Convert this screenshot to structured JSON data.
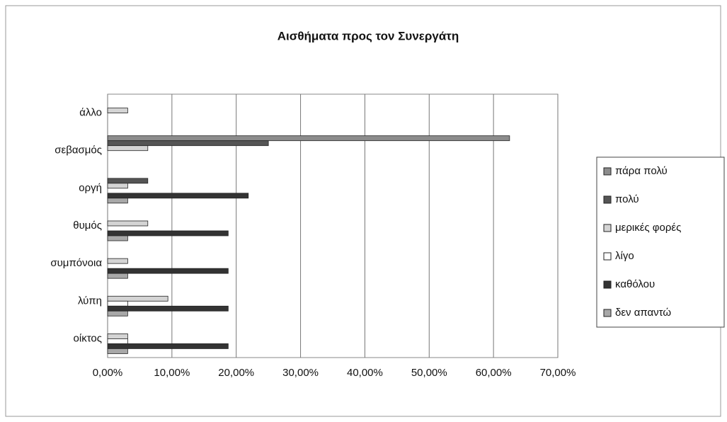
{
  "chart_data": {
    "type": "bar",
    "orientation": "horizontal",
    "title": "Αισθήματα προς τον Συνεργάτη",
    "categories": [
      "άλλο",
      "σεβασμός",
      "οργή",
      "θυμός",
      "συμπόνοια",
      "λύπη",
      "οίκτος"
    ],
    "series": [
      {
        "name": "πάρα πολύ",
        "color": "#8c8c8c",
        "values": [
          0,
          62.5,
          0,
          0,
          0,
          0,
          0
        ]
      },
      {
        "name": "πολύ",
        "color": "#555555",
        "values": [
          0,
          25,
          6.25,
          0,
          0,
          0,
          0
        ]
      },
      {
        "name": "μερικές φορές",
        "color": "#d4d4d4",
        "values": [
          3.125,
          6.25,
          3.125,
          6.25,
          3.125,
          9.375,
          3.125
        ]
      },
      {
        "name": "λίγο",
        "color": "#ffffff",
        "values": [
          0,
          0,
          0,
          0,
          0,
          3.125,
          3.125
        ]
      },
      {
        "name": "καθόλου",
        "color": "#333333",
        "values": [
          0,
          0,
          21.875,
          18.75,
          18.75,
          18.75,
          18.75
        ]
      },
      {
        "name": "δεν απαντώ",
        "color": "#a8a8a8",
        "values": [
          0,
          0,
          3.125,
          3.125,
          3.125,
          3.125,
          3.125
        ]
      }
    ],
    "xlim": [
      0,
      70
    ],
    "xticks": [
      {
        "value": 0,
        "label": "0,00%"
      },
      {
        "value": 10,
        "label": "10,00%"
      },
      {
        "value": 20,
        "label": "20,00%"
      },
      {
        "value": 30,
        "label": "30,00%"
      },
      {
        "value": 40,
        "label": "40,00%"
      },
      {
        "value": 50,
        "label": "50,00%"
      },
      {
        "value": 60,
        "label": "60,00%"
      },
      {
        "value": 70,
        "label": "70,00%"
      }
    ],
    "grid": true,
    "legend": "right"
  }
}
